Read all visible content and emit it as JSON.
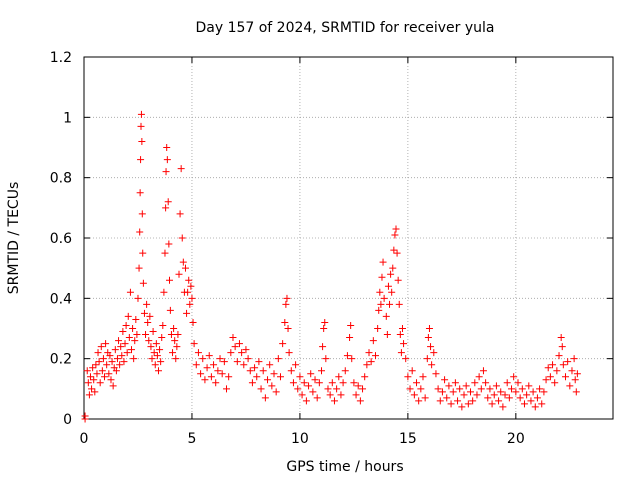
{
  "chart_data": {
    "type": "scatter",
    "title": "Day 157 of 2024, SRMTID for receiver yula",
    "xlabel": "GPS time / hours",
    "ylabel": "SRMTID / TECUs",
    "xlim": [
      0,
      24.5
    ],
    "ylim": [
      0,
      1.2
    ],
    "x_ticks": [
      0,
      5,
      10,
      15,
      20
    ],
    "x_tick_labels": [
      "0",
      "5",
      "10",
      "15",
      "20"
    ],
    "y_ticks": [
      0,
      0.2,
      0.4,
      0.6,
      0.8,
      1.0,
      1.2
    ],
    "y_tick_labels": [
      "0",
      "0.2",
      "0.4",
      "0.6",
      "0.8",
      "1",
      "1.2"
    ],
    "grid": true,
    "marker": "plus",
    "color": "#ff0000",
    "series": [
      {
        "name": "SRMTID",
        "points": [
          [
            0.05,
            0.0
          ],
          [
            0.05,
            0.01
          ],
          [
            0.15,
            0.16
          ],
          [
            0.2,
            0.12
          ],
          [
            0.25,
            0.08
          ],
          [
            0.3,
            0.14
          ],
          [
            0.35,
            0.1
          ],
          [
            0.4,
            0.17
          ],
          [
            0.45,
            0.13
          ],
          [
            0.5,
            0.09
          ],
          [
            0.55,
            0.18
          ],
          [
            0.6,
            0.15
          ],
          [
            0.65,
            0.22
          ],
          [
            0.7,
            0.19
          ],
          [
            0.75,
            0.12
          ],
          [
            0.8,
            0.24
          ],
          [
            0.85,
            0.16
          ],
          [
            0.9,
            0.2
          ],
          [
            0.95,
            0.14
          ],
          [
            1.0,
            0.25
          ],
          [
            1.05,
            0.18
          ],
          [
            1.1,
            0.22
          ],
          [
            1.15,
            0.15
          ],
          [
            1.2,
            0.21
          ],
          [
            1.25,
            0.13
          ],
          [
            1.3,
            0.19
          ],
          [
            1.35,
            0.11
          ],
          [
            1.4,
            0.17
          ],
          [
            1.45,
            0.23
          ],
          [
            1.5,
            0.16
          ],
          [
            1.55,
            0.2
          ],
          [
            1.6,
            0.26
          ],
          [
            1.65,
            0.18
          ],
          [
            1.7,
            0.24
          ],
          [
            1.75,
            0.21
          ],
          [
            1.8,
            0.29
          ],
          [
            1.85,
            0.19
          ],
          [
            1.9,
            0.25
          ],
          [
            1.95,
            0.31
          ],
          [
            2.0,
            0.22
          ],
          [
            2.05,
            0.34
          ],
          [
            2.1,
            0.27
          ],
          [
            2.15,
            0.42
          ],
          [
            2.2,
            0.23
          ],
          [
            2.25,
            0.3
          ],
          [
            2.3,
            0.2
          ],
          [
            2.35,
            0.26
          ],
          [
            2.4,
            0.33
          ],
          [
            2.45,
            0.28
          ],
          [
            2.5,
            0.4
          ],
          [
            2.55,
            0.5
          ],
          [
            2.58,
            0.62
          ],
          [
            2.6,
            0.75
          ],
          [
            2.62,
            0.86
          ],
          [
            2.64,
            0.97
          ],
          [
            2.66,
            1.01
          ],
          [
            2.68,
            0.92
          ],
          [
            2.7,
            0.68
          ],
          [
            2.72,
            0.55
          ],
          [
            2.75,
            0.45
          ],
          [
            2.8,
            0.35
          ],
          [
            2.85,
            0.28
          ],
          [
            2.9,
            0.38
          ],
          [
            2.95,
            0.32
          ],
          [
            3.0,
            0.26
          ],
          [
            3.05,
            0.34
          ],
          [
            3.1,
            0.24
          ],
          [
            3.15,
            0.2
          ],
          [
            3.2,
            0.29
          ],
          [
            3.25,
            0.22
          ],
          [
            3.3,
            0.18
          ],
          [
            3.35,
            0.25
          ],
          [
            3.4,
            0.21
          ],
          [
            3.45,
            0.16
          ],
          [
            3.5,
            0.23
          ],
          [
            3.55,
            0.19
          ],
          [
            3.6,
            0.27
          ],
          [
            3.65,
            0.31
          ],
          [
            3.7,
            0.42
          ],
          [
            3.75,
            0.55
          ],
          [
            3.78,
            0.7
          ],
          [
            3.8,
            0.82
          ],
          [
            3.83,
            0.9
          ],
          [
            3.86,
            0.86
          ],
          [
            3.9,
            0.72
          ],
          [
            3.93,
            0.58
          ],
          [
            3.96,
            0.46
          ],
          [
            4.0,
            0.36
          ],
          [
            4.05,
            0.28
          ],
          [
            4.1,
            0.22
          ],
          [
            4.15,
            0.3
          ],
          [
            4.2,
            0.26
          ],
          [
            4.25,
            0.2
          ],
          [
            4.3,
            0.24
          ],
          [
            4.35,
            0.28
          ],
          [
            4.4,
            0.48
          ],
          [
            4.45,
            0.68
          ],
          [
            4.5,
            0.83
          ],
          [
            4.55,
            0.6
          ],
          [
            4.6,
            0.52
          ],
          [
            4.65,
            0.42
          ],
          [
            4.7,
            0.5
          ],
          [
            4.75,
            0.35
          ],
          [
            4.8,
            0.42
          ],
          [
            4.85,
            0.46
          ],
          [
            4.9,
            0.38
          ],
          [
            4.95,
            0.44
          ],
          [
            5.0,
            0.4
          ],
          [
            5.05,
            0.32
          ],
          [
            5.1,
            0.25
          ],
          [
            5.2,
            0.18
          ],
          [
            5.3,
            0.22
          ],
          [
            5.4,
            0.15
          ],
          [
            5.5,
            0.2
          ],
          [
            5.6,
            0.13
          ],
          [
            5.7,
            0.17
          ],
          [
            5.8,
            0.21
          ],
          [
            5.9,
            0.14
          ],
          [
            6.0,
            0.18
          ],
          [
            6.1,
            0.12
          ],
          [
            6.2,
            0.16
          ],
          [
            6.3,
            0.2
          ],
          [
            6.4,
            0.15
          ],
          [
            6.5,
            0.19
          ],
          [
            6.6,
            0.1
          ],
          [
            6.7,
            0.14
          ],
          [
            6.8,
            0.22
          ],
          [
            6.9,
            0.27
          ],
          [
            7.0,
            0.24
          ],
          [
            7.1,
            0.19
          ],
          [
            7.2,
            0.25
          ],
          [
            7.3,
            0.22
          ],
          [
            7.4,
            0.18
          ],
          [
            7.5,
            0.23
          ],
          [
            7.6,
            0.2
          ],
          [
            7.7,
            0.16
          ],
          [
            7.8,
            0.12
          ],
          [
            7.9,
            0.17
          ],
          [
            8.0,
            0.14
          ],
          [
            8.1,
            0.19
          ],
          [
            8.2,
            0.1
          ],
          [
            8.3,
            0.16
          ],
          [
            8.4,
            0.07
          ],
          [
            8.5,
            0.13
          ],
          [
            8.6,
            0.18
          ],
          [
            8.7,
            0.11
          ],
          [
            8.8,
            0.15
          ],
          [
            8.9,
            0.09
          ],
          [
            9.0,
            0.2
          ],
          [
            9.1,
            0.14
          ],
          [
            9.2,
            0.25
          ],
          [
            9.3,
            0.32
          ],
          [
            9.35,
            0.38
          ],
          [
            9.4,
            0.4
          ],
          [
            9.45,
            0.3
          ],
          [
            9.5,
            0.22
          ],
          [
            9.6,
            0.16
          ],
          [
            9.7,
            0.12
          ],
          [
            9.8,
            0.18
          ],
          [
            9.9,
            0.1
          ],
          [
            10.0,
            0.14
          ],
          [
            10.1,
            0.08
          ],
          [
            10.2,
            0.12
          ],
          [
            10.3,
            0.06
          ],
          [
            10.4,
            0.11
          ],
          [
            10.5,
            0.15
          ],
          [
            10.6,
            0.09
          ],
          [
            10.7,
            0.13
          ],
          [
            10.8,
            0.07
          ],
          [
            10.9,
            0.12
          ],
          [
            11.0,
            0.16
          ],
          [
            11.05,
            0.24
          ],
          [
            11.1,
            0.3
          ],
          [
            11.15,
            0.32
          ],
          [
            11.2,
            0.2
          ],
          [
            11.3,
            0.1
          ],
          [
            11.4,
            0.08
          ],
          [
            11.5,
            0.12
          ],
          [
            11.6,
            0.06
          ],
          [
            11.7,
            0.1
          ],
          [
            11.8,
            0.14
          ],
          [
            11.9,
            0.08
          ],
          [
            12.0,
            0.12
          ],
          [
            12.1,
            0.16
          ],
          [
            12.2,
            0.21
          ],
          [
            12.3,
            0.27
          ],
          [
            12.35,
            0.31
          ],
          [
            12.4,
            0.2
          ],
          [
            12.5,
            0.12
          ],
          [
            12.6,
            0.08
          ],
          [
            12.7,
            0.11
          ],
          [
            12.8,
            0.06
          ],
          [
            12.9,
            0.1
          ],
          [
            13.0,
            0.14
          ],
          [
            13.1,
            0.18
          ],
          [
            13.2,
            0.22
          ],
          [
            13.3,
            0.19
          ],
          [
            13.4,
            0.26
          ],
          [
            13.5,
            0.21
          ],
          [
            13.6,
            0.3
          ],
          [
            13.65,
            0.36
          ],
          [
            13.7,
            0.42
          ],
          [
            13.75,
            0.38
          ],
          [
            13.8,
            0.47
          ],
          [
            13.85,
            0.52
          ],
          [
            13.9,
            0.4
          ],
          [
            14.0,
            0.34
          ],
          [
            14.05,
            0.28
          ],
          [
            14.1,
            0.44
          ],
          [
            14.15,
            0.38
          ],
          [
            14.2,
            0.48
          ],
          [
            14.25,
            0.42
          ],
          [
            14.3,
            0.5
          ],
          [
            14.35,
            0.56
          ],
          [
            14.4,
            0.61
          ],
          [
            14.45,
            0.63
          ],
          [
            14.5,
            0.55
          ],
          [
            14.55,
            0.46
          ],
          [
            14.6,
            0.38
          ],
          [
            14.65,
            0.28
          ],
          [
            14.7,
            0.22
          ],
          [
            14.75,
            0.3
          ],
          [
            14.8,
            0.25
          ],
          [
            14.9,
            0.2
          ],
          [
            15.0,
            0.14
          ],
          [
            15.1,
            0.1
          ],
          [
            15.2,
            0.16
          ],
          [
            15.3,
            0.08
          ],
          [
            15.4,
            0.12
          ],
          [
            15.5,
            0.06
          ],
          [
            15.6,
            0.1
          ],
          [
            15.7,
            0.14
          ],
          [
            15.8,
            0.07
          ],
          [
            15.9,
            0.2
          ],
          [
            15.95,
            0.27
          ],
          [
            16.0,
            0.3
          ],
          [
            16.05,
            0.24
          ],
          [
            16.1,
            0.18
          ],
          [
            16.2,
            0.22
          ],
          [
            16.3,
            0.15
          ],
          [
            16.4,
            0.1
          ],
          [
            16.5,
            0.06
          ],
          [
            16.6,
            0.09
          ],
          [
            16.7,
            0.13
          ],
          [
            16.8,
            0.07
          ],
          [
            16.9,
            0.11
          ],
          [
            17.0,
            0.05
          ],
          [
            17.1,
            0.09
          ],
          [
            17.2,
            0.12
          ],
          [
            17.3,
            0.06
          ],
          [
            17.4,
            0.1
          ],
          [
            17.5,
            0.04
          ],
          [
            17.6,
            0.08
          ],
          [
            17.7,
            0.11
          ],
          [
            17.8,
            0.05
          ],
          [
            17.9,
            0.09
          ],
          [
            18.0,
            0.06
          ],
          [
            18.1,
            0.12
          ],
          [
            18.2,
            0.08
          ],
          [
            18.3,
            0.14
          ],
          [
            18.4,
            0.1
          ],
          [
            18.5,
            0.16
          ],
          [
            18.6,
            0.12
          ],
          [
            18.7,
            0.07
          ],
          [
            18.8,
            0.1
          ],
          [
            18.9,
            0.05
          ],
          [
            19.0,
            0.08
          ],
          [
            19.1,
            0.11
          ],
          [
            19.2,
            0.06
          ],
          [
            19.3,
            0.09
          ],
          [
            19.4,
            0.04
          ],
          [
            19.5,
            0.08
          ],
          [
            19.6,
            0.12
          ],
          [
            19.7,
            0.07
          ],
          [
            19.8,
            0.1
          ],
          [
            19.9,
            0.14
          ],
          [
            20.0,
            0.09
          ],
          [
            20.1,
            0.12
          ],
          [
            20.2,
            0.07
          ],
          [
            20.3,
            0.1
          ],
          [
            20.4,
            0.05
          ],
          [
            20.5,
            0.08
          ],
          [
            20.6,
            0.11
          ],
          [
            20.7,
            0.06
          ],
          [
            20.8,
            0.09
          ],
          [
            20.9,
            0.04
          ],
          [
            21.0,
            0.07
          ],
          [
            21.1,
            0.1
          ],
          [
            21.2,
            0.05
          ],
          [
            21.3,
            0.09
          ],
          [
            21.4,
            0.13
          ],
          [
            21.5,
            0.17
          ],
          [
            21.6,
            0.14
          ],
          [
            21.7,
            0.18
          ],
          [
            21.8,
            0.12
          ],
          [
            21.9,
            0.16
          ],
          [
            22.0,
            0.21
          ],
          [
            22.1,
            0.27
          ],
          [
            22.15,
            0.24
          ],
          [
            22.2,
            0.18
          ],
          [
            22.3,
            0.14
          ],
          [
            22.4,
            0.19
          ],
          [
            22.5,
            0.11
          ],
          [
            22.6,
            0.16
          ],
          [
            22.7,
            0.2
          ],
          [
            22.75,
            0.13
          ],
          [
            22.8,
            0.09
          ],
          [
            22.85,
            0.15
          ]
        ]
      }
    ]
  }
}
